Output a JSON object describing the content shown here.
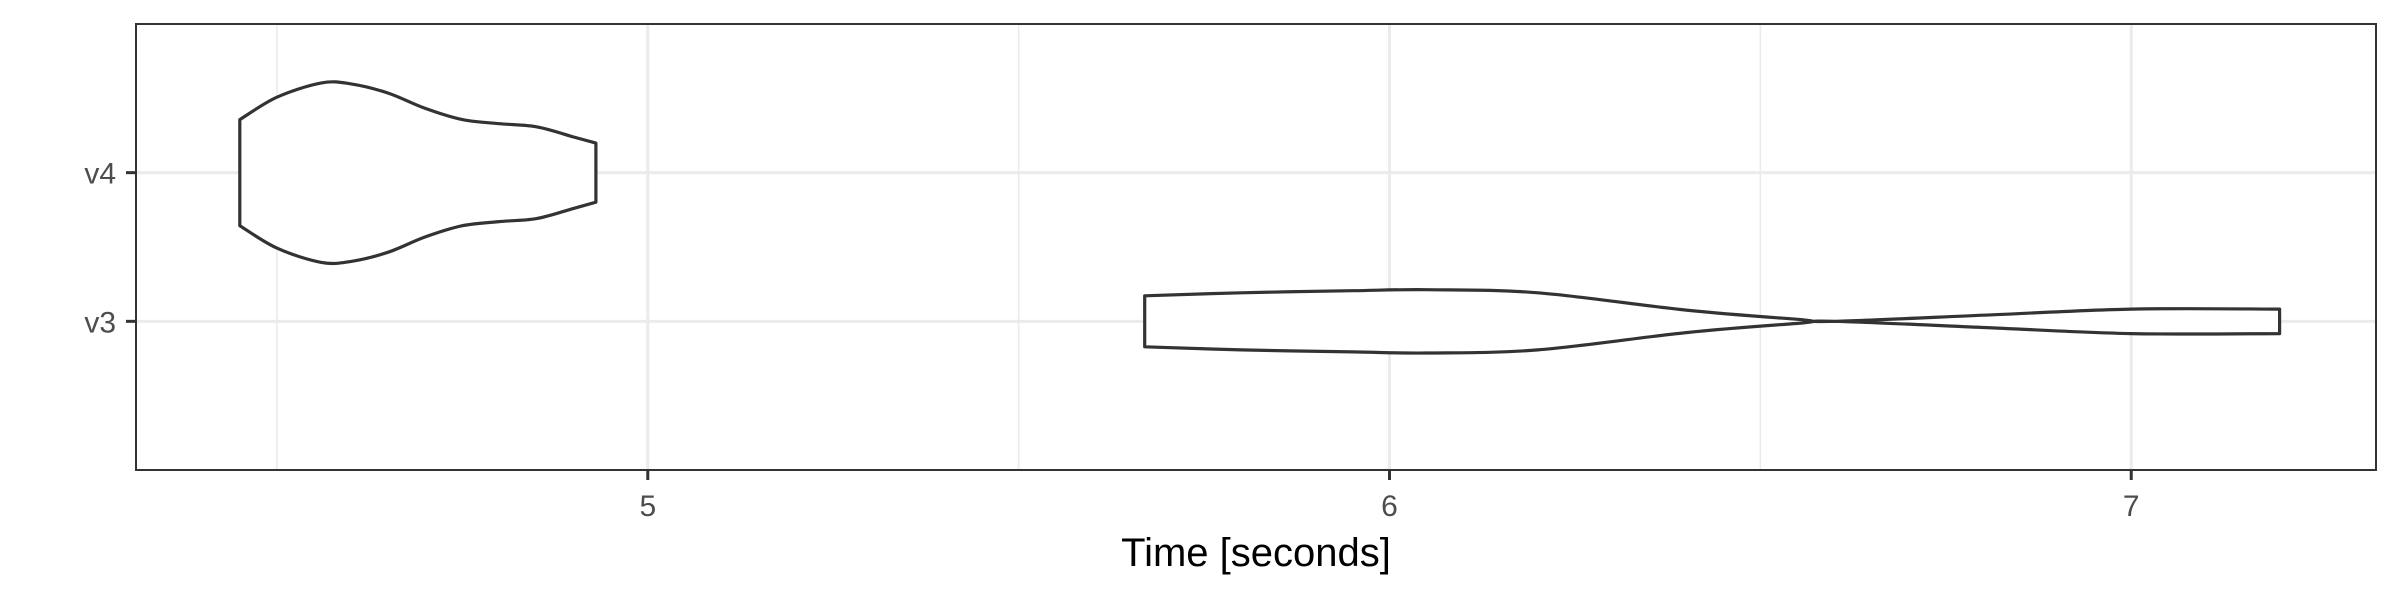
{
  "chart_data": {
    "type": "violin",
    "orientation": "horizontal",
    "xlabel": "Time [seconds]",
    "ylabel": "",
    "title": "",
    "xlim": [
      4.31,
      7.33
    ],
    "x_ticks": [
      5,
      6,
      7
    ],
    "x_tick_labels": [
      "5",
      "6",
      "7"
    ],
    "x_minor_ticks": [
      4.5,
      5.5,
      6.5
    ],
    "categories": [
      "v3",
      "v4"
    ],
    "grid": true,
    "legend": "none",
    "colors": {
      "outline": "#333333",
      "fill": "#ffffff",
      "grid": "#ebebeb",
      "text": "#4d4d4d"
    },
    "series": [
      {
        "category": "v4",
        "min": 4.45,
        "max": 4.93,
        "density_profile": [
          [
            4.45,
            0.52
          ],
          [
            4.5,
            0.74
          ],
          [
            4.56,
            0.88
          ],
          [
            4.6,
            0.87
          ],
          [
            4.65,
            0.78
          ],
          [
            4.7,
            0.63
          ],
          [
            4.75,
            0.52
          ],
          [
            4.8,
            0.48
          ],
          [
            4.85,
            0.45
          ],
          [
            4.9,
            0.35
          ],
          [
            4.93,
            0.29
          ]
        ]
      },
      {
        "category": "v3",
        "min": 5.67,
        "max": 7.2,
        "density_profile": [
          [
            5.67,
            0.25
          ],
          [
            5.8,
            0.28
          ],
          [
            5.95,
            0.3
          ],
          [
            6.05,
            0.31
          ],
          [
            6.2,
            0.28
          ],
          [
            6.4,
            0.11
          ],
          [
            6.55,
            0.02
          ],
          [
            6.6,
            0.0
          ],
          [
            6.8,
            0.06
          ],
          [
            7.0,
            0.12
          ],
          [
            7.2,
            0.12
          ]
        ]
      }
    ]
  }
}
